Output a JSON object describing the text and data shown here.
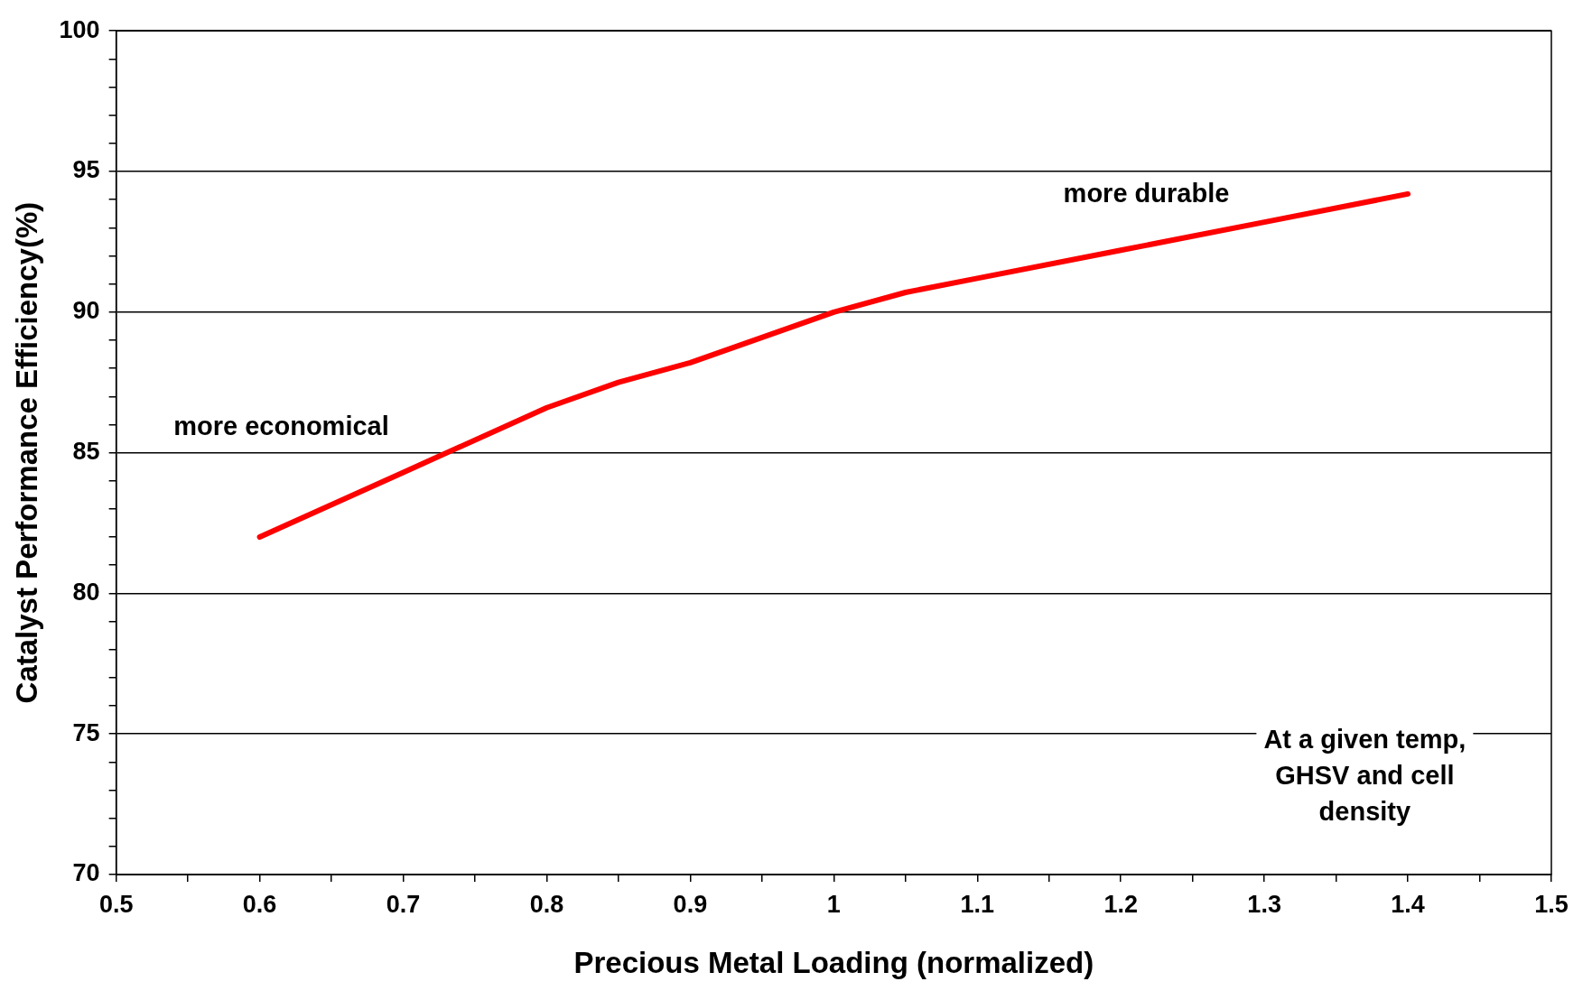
{
  "chart_data": {
    "type": "line",
    "xlabel": "Precious Metal Loading (normalized)",
    "ylabel": "Catalyst Performance Efficiency(%)",
    "x": [
      0.6,
      0.7,
      0.8,
      0.85,
      0.9,
      1.0,
      1.05,
      1.1,
      1.2,
      1.3,
      1.4
    ],
    "series": [
      {
        "color": "#ff0000",
        "values": [
          82.0,
          84.3,
          86.6,
          87.5,
          88.2,
          90.0,
          90.7,
          91.2,
          92.2,
          93.2,
          94.2
        ]
      }
    ],
    "xlim": [
      0.5,
      1.5
    ],
    "xticks": [
      0.5,
      {
        "value": 0.55,
        "label": null
      },
      0.6,
      {
        "value": 0.65,
        "label": null
      },
      0.7,
      {
        "value": 0.75,
        "label": null
      },
      0.8,
      {
        "value": 0.85,
        "label": null
      },
      0.9,
      {
        "value": 0.95,
        "label": null
      },
      1,
      {
        "value": 1.05,
        "label": null
      },
      1.1,
      {
        "value": 1.15,
        "label": null
      },
      1.2,
      {
        "value": 1.25,
        "label": null
      },
      1.3,
      {
        "value": 1.35,
        "label": null
      },
      1.4,
      {
        "value": 1.45,
        "label": null
      },
      1.5
    ],
    "ylim": [
      70,
      100
    ],
    "yticks": [
      70,
      {
        "value": 71,
        "label": null
      },
      {
        "value": 72,
        "label": null
      },
      {
        "value": 73,
        "label": null
      },
      {
        "value": 74,
        "label": null
      },
      75,
      {
        "value": 76,
        "label": null
      },
      {
        "value": 77,
        "label": null
      },
      {
        "value": 78,
        "label": null
      },
      {
        "value": 79,
        "label": null
      },
      80,
      {
        "value": 81,
        "label": null
      },
      {
        "value": 82,
        "label": null
      },
      {
        "value": 83,
        "label": null
      },
      {
        "value": 84,
        "label": null
      },
      85,
      {
        "value": 86,
        "label": null
      },
      {
        "value": 87,
        "label": null
      },
      {
        "value": 88,
        "label": null
      },
      {
        "value": 89,
        "label": null
      },
      90,
      {
        "value": 91,
        "label": null
      },
      {
        "value": 92,
        "label": null
      },
      {
        "value": 93,
        "label": null
      },
      {
        "value": 94,
        "label": null
      },
      95,
      {
        "value": 96,
        "label": null
      },
      {
        "value": 97,
        "label": null
      },
      {
        "value": 98,
        "label": null
      },
      {
        "value": 99,
        "label": null
      },
      100
    ],
    "grid": "y",
    "marker": "none",
    "line_style": "solid",
    "legend": false,
    "annotations": [
      "more economical",
      "more durable",
      "At a given temp,\nGHSV and cell\ndensity"
    ]
  }
}
